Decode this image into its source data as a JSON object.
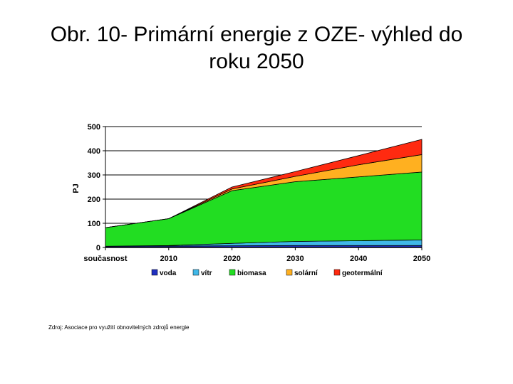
{
  "slide": {
    "title_line1": "Obr. 10- Primární energie z OZE- výhled do",
    "title_line2": "roku 2050"
  },
  "chart_data": {
    "type": "area",
    "stacked": true,
    "ylabel": "PJ",
    "xlabel": "",
    "ylim": [
      0,
      500
    ],
    "yticks": [
      0,
      100,
      200,
      300,
      400,
      500
    ],
    "grid": true,
    "legend_position": "bottom",
    "categories": [
      "současnost",
      "2010",
      "2020",
      "2030",
      "2040",
      "2050"
    ],
    "series": [
      {
        "name": "voda",
        "color": "#1f2fbf",
        "values": [
          5,
          6,
          7,
          8,
          8,
          8
        ]
      },
      {
        "name": "vítr",
        "color": "#40b8e8",
        "values": [
          0,
          2,
          10,
          17,
          20,
          23
        ]
      },
      {
        "name": "biomasa",
        "color": "#22dd22",
        "values": [
          77,
          111,
          218,
          247,
          264,
          281
        ]
      },
      {
        "name": "solární",
        "color": "#ffb020",
        "values": [
          0,
          0,
          7,
          22,
          50,
          72
        ]
      },
      {
        "name": "geotermální",
        "color": "#ff2a10",
        "values": [
          0,
          0,
          8,
          20,
          38,
          63
        ]
      }
    ]
  },
  "source_note": "Zdroj: Asociace pro využití obnovitelných zdrojů energie"
}
